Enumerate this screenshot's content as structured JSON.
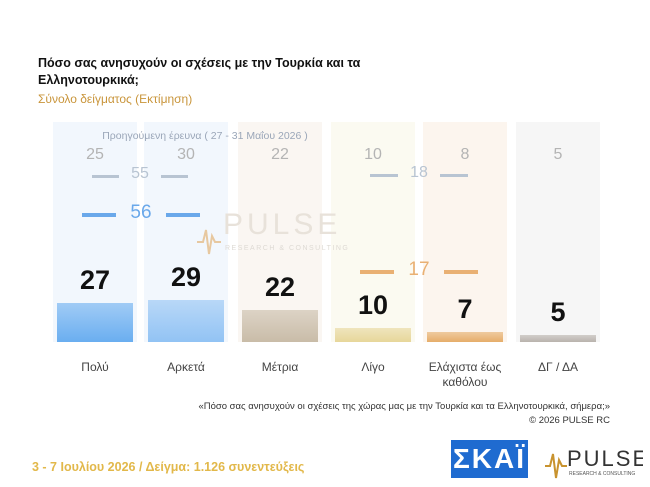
{
  "title": "Πόσο σας ανησυχούν οι σχέσεις με την Τουρκία και τα Ελληνοτουρκικά;",
  "subtitle": "Σύνολο δείγματος (Εκτίμηση)",
  "previous_survey_label": "Προηγούμενη έρευνα ( 27 - 31 Μαΐου 2026 )",
  "chart_data": {
    "type": "bar",
    "categories": [
      "Πολύ",
      "Αρκετά",
      "Μέτρια",
      "Λίγο",
      "Ελάχιστα έως καθόλου",
      "ΔΓ / ΔΑ"
    ],
    "series": [
      {
        "name": "current",
        "values": [
          27,
          29,
          22,
          10,
          7,
          5
        ]
      },
      {
        "name": "previous",
        "values": [
          25,
          30,
          22,
          10,
          8,
          5
        ]
      }
    ],
    "groups": {
      "worried_previous": 55,
      "worried_current": 56,
      "not_worried_previous": 18,
      "not_worried_current": 17
    },
    "colors": [
      "#6aaef0",
      "#92c3f4",
      "#c9bca8",
      "#e7d79a",
      "#e6ad6a",
      "#b9b3ad"
    ],
    "col_bg_colors": [
      "#f2f7fd",
      "#f2f7fd",
      "#faf6f2",
      "#fbfaf1",
      "#fcf5ee",
      "#f6f6f6"
    ]
  },
  "watermark": {
    "brand": "PULSE",
    "tagline": "RESEARCH & CONSULTING"
  },
  "question_note": "«Πόσο σας ανησυχούν οι σχέσεις της χώρας μας με την Τουρκία και τα Ελληνοτουρκικά, σήμερα;»",
  "copyright": "©  2026  PULSE RC",
  "footer": "3 - 7  Ιουλίου 2026  /  Δείγμα:  1.126 συνεντεύξεις",
  "logos": {
    "skai": "ΣΚΑΪ",
    "pulse": "PULSE",
    "pulse_tagline": "RESEARCH & CONSULTING"
  }
}
